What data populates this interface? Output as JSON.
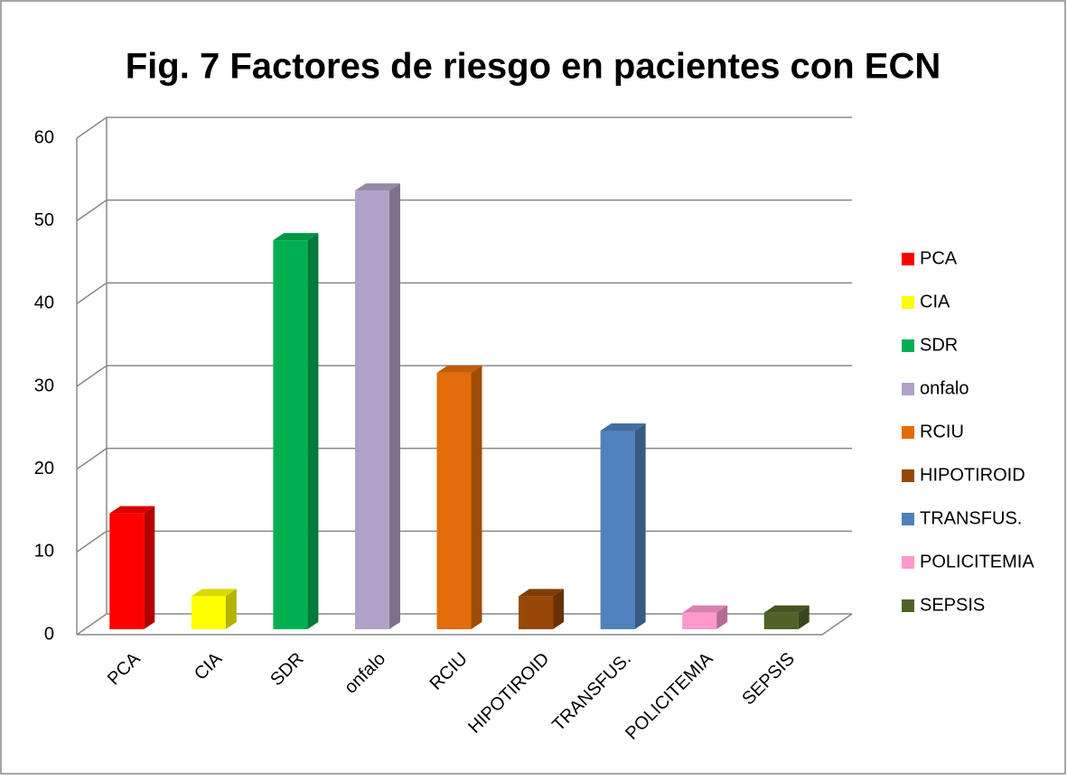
{
  "chart_data": {
    "type": "bar3d",
    "title": "Fig. 7 Factores de riesgo en pacientes con ECN",
    "categories": [
      "PCA",
      "CIA",
      "SDR",
      "onfalo",
      "RCIU",
      "HIPOTIROID",
      "TRANSFUS.",
      "POLICITEMIA",
      "SEPSIS"
    ],
    "values": [
      14,
      4,
      47,
      53,
      31,
      4,
      24,
      2,
      2
    ],
    "colors": [
      "#ff0000",
      "#ffff00",
      "#00b050",
      "#b1a0c7",
      "#e46c0a",
      "#974706",
      "#4f81bd",
      "#ff99cc",
      "#4f6228"
    ],
    "ylim": [
      0,
      60
    ],
    "yticks": [
      0,
      10,
      20,
      30,
      40,
      50,
      60
    ],
    "grid": true,
    "legend": "right"
  }
}
